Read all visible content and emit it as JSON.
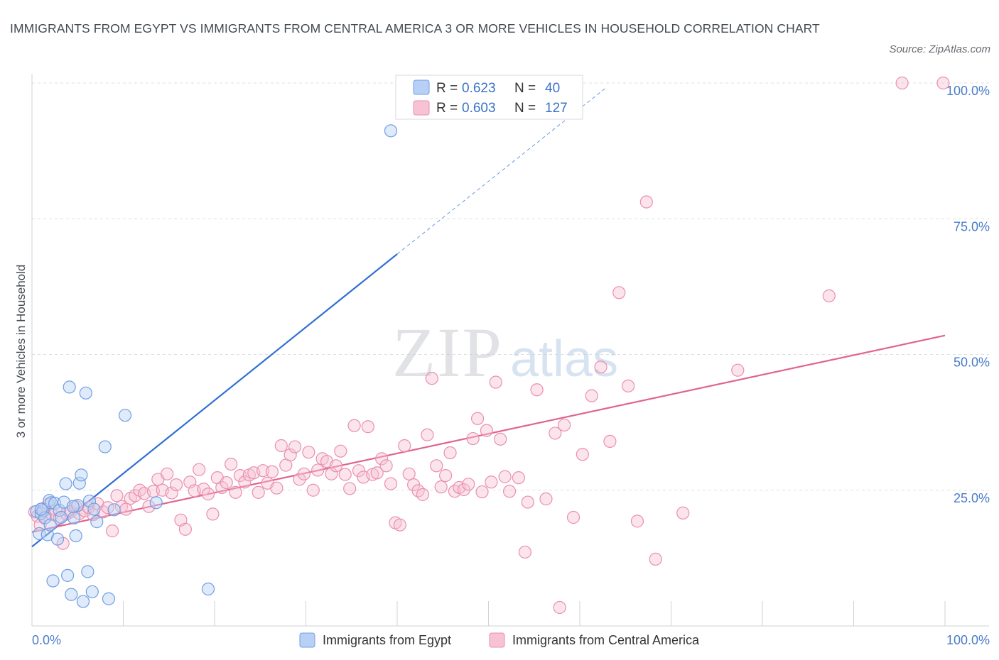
{
  "title": "IMMIGRANTS FROM EGYPT VS IMMIGRANTS FROM CENTRAL AMERICA 3 OR MORE VEHICLES IN HOUSEHOLD CORRELATION CHART",
  "source": "Source: ZipAtlas.com",
  "watermark": {
    "zip": "ZIP",
    "atlas": "atlas"
  },
  "colors": {
    "egypt": "#6f9fe3",
    "egypt_fill": "#b8d0f5",
    "egypt_line": "#2f6fd0",
    "central": "#ea8fae",
    "central_fill": "#f7c3d4",
    "central_line": "#e0648f",
    "tick": "#4a7cc9"
  },
  "legend": {
    "rows": [
      {
        "r_label": "R =",
        "r_value": "0.623",
        "n_label": "N =",
        "n_value": "40"
      },
      {
        "r_label": "R =",
        "r_value": "0.603",
        "n_label": "N =",
        "n_value": "127"
      }
    ]
  },
  "chart_data": {
    "type": "scatter",
    "xlabel": "",
    "ylabel": "3 or more Vehicles in Household",
    "xlim": [
      0,
      100
    ],
    "ylim": [
      0,
      100
    ],
    "x_ticks": [
      "0.0%",
      "100.0%"
    ],
    "y_ticks": [
      "25.0%",
      "50.0%",
      "75.0%",
      "100.0%"
    ],
    "y_tick_values": [
      25,
      50,
      75,
      100
    ],
    "grid": true,
    "series": [
      {
        "name": "Immigrants from Egypt",
        "R": 0.623,
        "N": 40,
        "trend": {
          "x": [
            0,
            40
          ],
          "y": [
            14.6,
            68.5
          ],
          "dashed_to": [
            63,
            99.3
          ]
        },
        "points": [
          [
            0.5,
            21.1
          ],
          [
            0.8,
            17.0
          ],
          [
            1.0,
            20.7
          ],
          [
            1.2,
            21.2
          ],
          [
            1.4,
            19.9
          ],
          [
            1.7,
            16.8
          ],
          [
            1.9,
            23.1
          ],
          [
            2.1,
            22.7
          ],
          [
            2.3,
            8.3
          ],
          [
            2.5,
            22.6
          ],
          [
            2.8,
            16.0
          ],
          [
            3.0,
            21.3
          ],
          [
            3.2,
            20.0
          ],
          [
            3.5,
            22.8
          ],
          [
            3.7,
            26.2
          ],
          [
            3.9,
            9.3
          ],
          [
            4.1,
            44.0
          ],
          [
            4.3,
            5.8
          ],
          [
            4.6,
            19.9
          ],
          [
            4.8,
            16.6
          ],
          [
            5.0,
            22.2
          ],
          [
            5.2,
            26.3
          ],
          [
            5.4,
            27.8
          ],
          [
            5.6,
            4.5
          ],
          [
            5.9,
            42.9
          ],
          [
            6.1,
            10.0
          ],
          [
            6.3,
            23.0
          ],
          [
            6.6,
            6.3
          ],
          [
            6.8,
            21.5
          ],
          [
            7.1,
            19.2
          ],
          [
            8.0,
            33.0
          ],
          [
            8.4,
            5.0
          ],
          [
            9.0,
            21.4
          ],
          [
            10.2,
            38.8
          ],
          [
            13.6,
            22.7
          ],
          [
            19.3,
            6.8
          ],
          [
            39.3,
            91.2
          ],
          [
            2.0,
            18.6
          ],
          [
            1.0,
            21.5
          ],
          [
            4.5,
            22.0
          ]
        ]
      },
      {
        "name": "Immigrants from Central America",
        "R": 0.603,
        "N": 127,
        "trend": {
          "x": [
            0,
            100
          ],
          "y": [
            17.3,
            53.5
          ]
        },
        "points": [
          [
            0.3,
            21.0
          ],
          [
            0.6,
            20.2
          ],
          [
            0.9,
            18.6
          ],
          [
            1.2,
            21.6
          ],
          [
            1.5,
            20.0
          ],
          [
            1.8,
            22.4
          ],
          [
            2.2,
            20.5
          ],
          [
            2.6,
            21.4
          ],
          [
            3.0,
            19.8
          ],
          [
            3.4,
            15.2
          ],
          [
            3.8,
            20.6
          ],
          [
            4.2,
            21.0
          ],
          [
            4.8,
            22.0
          ],
          [
            5.2,
            20.7
          ],
          [
            5.8,
            21.2
          ],
          [
            6.2,
            21.8
          ],
          [
            6.7,
            20.5
          ],
          [
            7.2,
            22.5
          ],
          [
            7.8,
            21.0
          ],
          [
            8.3,
            21.8
          ],
          [
            8.8,
            17.5
          ],
          [
            9.3,
            24.0
          ],
          [
            9.8,
            22.0
          ],
          [
            10.3,
            21.5
          ],
          [
            10.8,
            23.5
          ],
          [
            11.3,
            24.0
          ],
          [
            11.8,
            25.0
          ],
          [
            12.3,
            24.4
          ],
          [
            12.8,
            22.0
          ],
          [
            13.3,
            24.8
          ],
          [
            13.8,
            27.0
          ],
          [
            14.3,
            25.0
          ],
          [
            14.8,
            28.0
          ],
          [
            15.3,
            24.5
          ],
          [
            15.8,
            26.0
          ],
          [
            16.3,
            19.5
          ],
          [
            16.8,
            17.8
          ],
          [
            17.3,
            26.5
          ],
          [
            17.8,
            24.9
          ],
          [
            18.3,
            28.8
          ],
          [
            18.8,
            25.2
          ],
          [
            19.3,
            24.3
          ],
          [
            19.8,
            20.6
          ],
          [
            20.3,
            27.3
          ],
          [
            20.8,
            25.5
          ],
          [
            21.3,
            26.4
          ],
          [
            21.8,
            29.8
          ],
          [
            22.3,
            24.6
          ],
          [
            22.8,
            27.7
          ],
          [
            23.3,
            26.5
          ],
          [
            23.8,
            27.8
          ],
          [
            24.3,
            28.2
          ],
          [
            24.8,
            24.6
          ],
          [
            25.3,
            28.6
          ],
          [
            25.8,
            26.3
          ],
          [
            26.3,
            28.4
          ],
          [
            26.8,
            25.4
          ],
          [
            27.3,
            33.2
          ],
          [
            27.8,
            29.6
          ],
          [
            28.3,
            31.5
          ],
          [
            28.8,
            33.0
          ],
          [
            29.3,
            27.0
          ],
          [
            29.8,
            28.0
          ],
          [
            30.3,
            32.0
          ],
          [
            30.8,
            25.0
          ],
          [
            31.3,
            28.7
          ],
          [
            31.8,
            30.8
          ],
          [
            32.3,
            30.3
          ],
          [
            32.8,
            28.0
          ],
          [
            33.3,
            29.5
          ],
          [
            33.8,
            32.2
          ],
          [
            34.3,
            27.9
          ],
          [
            34.8,
            25.3
          ],
          [
            35.3,
            36.9
          ],
          [
            35.8,
            28.6
          ],
          [
            36.3,
            27.4
          ],
          [
            36.8,
            36.7
          ],
          [
            37.3,
            27.9
          ],
          [
            37.8,
            28.2
          ],
          [
            38.3,
            30.8
          ],
          [
            38.8,
            29.5
          ],
          [
            39.3,
            26.2
          ],
          [
            39.8,
            19.0
          ],
          [
            40.3,
            18.6
          ],
          [
            40.8,
            33.2
          ],
          [
            41.3,
            28.0
          ],
          [
            41.8,
            26.0
          ],
          [
            42.3,
            24.9
          ],
          [
            42.8,
            24.2
          ],
          [
            43.3,
            35.2
          ],
          [
            43.8,
            45.6
          ],
          [
            44.3,
            29.5
          ],
          [
            44.8,
            25.6
          ],
          [
            45.3,
            27.7
          ],
          [
            45.8,
            31.9
          ],
          [
            46.3,
            24.8
          ],
          [
            46.8,
            25.5
          ],
          [
            47.3,
            25.1
          ],
          [
            47.8,
            26.1
          ],
          [
            48.3,
            34.5
          ],
          [
            48.8,
            38.2
          ],
          [
            49.3,
            24.7
          ],
          [
            49.8,
            36.0
          ],
          [
            50.3,
            26.5
          ],
          [
            50.8,
            44.9
          ],
          [
            51.3,
            34.4
          ],
          [
            51.8,
            27.5
          ],
          [
            52.3,
            24.8
          ],
          [
            53.3,
            27.3
          ],
          [
            54.3,
            22.8
          ],
          [
            55.3,
            43.5
          ],
          [
            56.3,
            23.4
          ],
          [
            57.3,
            35.5
          ],
          [
            58.3,
            37.0
          ],
          [
            59.3,
            20.0
          ],
          [
            60.3,
            31.6
          ],
          [
            61.3,
            42.4
          ],
          [
            62.3,
            47.7
          ],
          [
            63.3,
            34.0
          ],
          [
            64.3,
            61.4
          ],
          [
            65.3,
            44.2
          ],
          [
            66.3,
            19.3
          ],
          [
            67.3,
            78.1
          ],
          [
            68.3,
            12.3
          ],
          [
            71.3,
            20.8
          ],
          [
            77.3,
            47.1
          ],
          [
            87.3,
            60.8
          ],
          [
            95.3,
            100.0
          ],
          [
            99.8,
            100.0
          ],
          [
            57.8,
            3.4
          ],
          [
            54.0,
            13.6
          ]
        ]
      }
    ]
  },
  "bottom_legend": [
    "Immigrants from Egypt",
    "Immigrants from Central America"
  ]
}
